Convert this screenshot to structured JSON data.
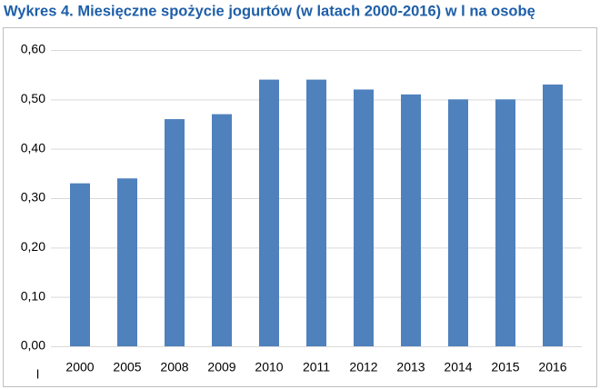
{
  "chart_data": {
    "type": "bar",
    "title": "Wykres 4. Miesięczne spożycie jogurtów (w latach 2000-2016) w l na osobę",
    "categories": [
      "2000",
      "2005",
      "2008",
      "2009",
      "2010",
      "2011",
      "2012",
      "2013",
      "2014",
      "2015",
      "2016"
    ],
    "values": [
      0.33,
      0.34,
      0.46,
      0.47,
      0.54,
      0.54,
      0.52,
      0.51,
      0.5,
      0.5,
      0.53
    ],
    "color": "#4f81bd",
    "ylim": [
      0,
      0.6
    ],
    "yticks": [
      {
        "value": 0,
        "label": "0,00"
      },
      {
        "value": 0.1,
        "label": "0,10"
      },
      {
        "value": 0.2,
        "label": "0,20"
      },
      {
        "value": 0.3,
        "label": "0,30"
      },
      {
        "value": 0.4,
        "label": "0,40"
      },
      {
        "value": 0.5,
        "label": "0,50"
      },
      {
        "value": 0.6,
        "label": "0,60"
      }
    ],
    "grid": true,
    "unit_label": "l"
  }
}
